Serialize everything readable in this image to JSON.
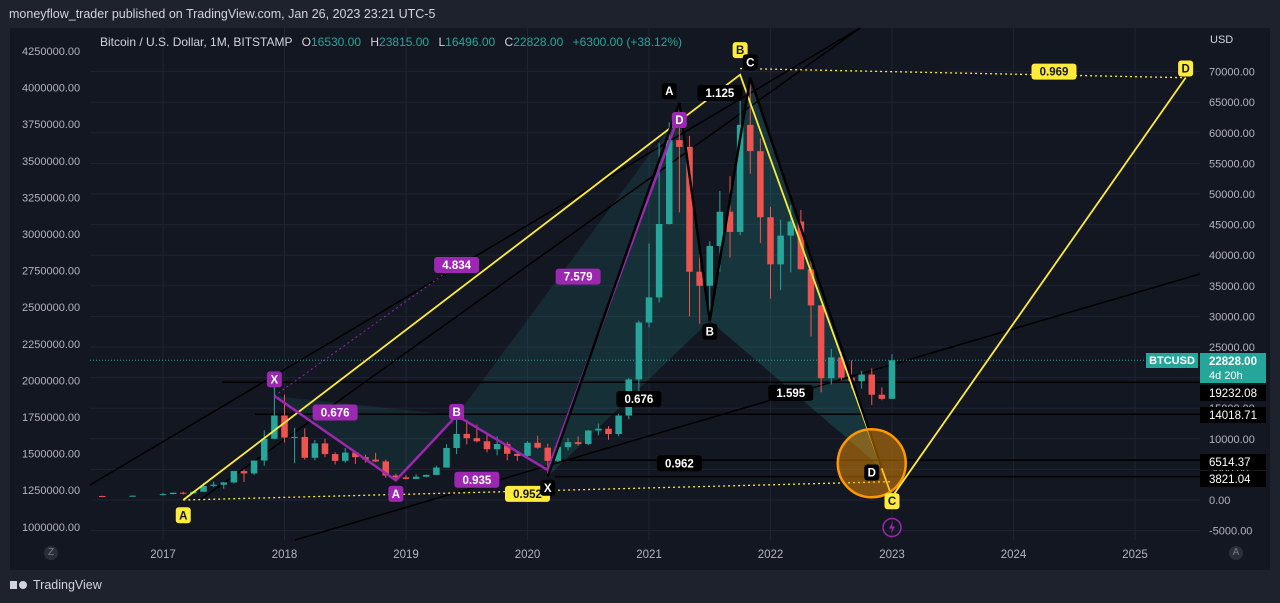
{
  "header": {
    "publish_line": "moneyflow_trader published on TradingView.com, Jan 26, 2023 23:21 UTC-5"
  },
  "legend": {
    "symbol": "Bitcoin / U.S. Dollar, 1M, BITSTAMP",
    "o_key": "O",
    "o_val": "16530.00",
    "h_key": "H",
    "h_val": "23815.00",
    "l_key": "L",
    "l_val": "16496.00",
    "c_key": "C",
    "c_val": "22828.00",
    "change": "+6300.00 (+38.12%)"
  },
  "right_axis": {
    "currency": "USD",
    "ticks": [
      "70000.00",
      "65000.00",
      "60000.00",
      "55000.00",
      "50000.00",
      "45000.00",
      "40000.00",
      "35000.00",
      "30000.00",
      "25000.00",
      "20000.00",
      "15000.00",
      "10000.00",
      "5000.00",
      "0.00",
      "-5000.00"
    ],
    "price_tag": {
      "symbol": "BTCUSD",
      "price": "22828.00",
      "countdown": "4d 20h",
      "color": "#26a69a"
    },
    "level_tags": [
      "19232.08",
      "14018.71",
      "6514.37",
      "3821.04"
    ]
  },
  "left_axis": {
    "ticks": [
      "4250000.00",
      "4000000.00",
      "3750000.00",
      "3500000.00",
      "3250000.00",
      "3000000.00",
      "2750000.00",
      "2500000.00",
      "2250000.00",
      "2000000.00",
      "1750000.00",
      "1500000.00",
      "1250000.00",
      "1000000.00"
    ]
  },
  "x_axis": {
    "ticks": [
      "2017",
      "2018",
      "2019",
      "2020",
      "2021",
      "2022",
      "2023",
      "2024",
      "2025"
    ]
  },
  "corners": {
    "left": "Z",
    "right": "A"
  },
  "footer": {
    "brand": "TradingView"
  },
  "chart_data": {
    "type": "candlestick",
    "symbol": "BTCUSD",
    "timeframe": "1M",
    "exchange": "BITSTAMP",
    "y_unit": "USD",
    "ylim": [
      -5000,
      72000
    ],
    "xlim": [
      "2016-06",
      "2025-08"
    ],
    "colors": {
      "up": "#26a69a",
      "down": "#ef5350",
      "pattern_yellow": "#ffeb3b",
      "pattern_purple": "#9c27b0",
      "pattern_black": "#000000",
      "highlight": "#ff9800"
    },
    "candles": [
      {
        "t": "2016-07",
        "o": 650,
        "h": 700,
        "l": 600,
        "c": 620
      },
      {
        "t": "2016-10",
        "o": 610,
        "h": 760,
        "l": 600,
        "c": 700
      },
      {
        "t": "2017-01",
        "o": 960,
        "h": 1150,
        "l": 750,
        "c": 970
      },
      {
        "t": "2017-02",
        "o": 970,
        "h": 1200,
        "l": 920,
        "c": 1190
      },
      {
        "t": "2017-03",
        "o": 1190,
        "h": 1350,
        "l": 890,
        "c": 1080
      },
      {
        "t": "2017-04",
        "o": 1080,
        "h": 1450,
        "l": 1080,
        "c": 1350
      },
      {
        "t": "2017-05",
        "o": 1350,
        "h": 2800,
        "l": 1350,
        "c": 2300
      },
      {
        "t": "2017-06",
        "o": 2300,
        "h": 3000,
        "l": 2100,
        "c": 2500
      },
      {
        "t": "2017-07",
        "o": 2500,
        "h": 2950,
        "l": 1850,
        "c": 2870
      },
      {
        "t": "2017-08",
        "o": 2870,
        "h": 4750,
        "l": 2700,
        "c": 4730
      },
      {
        "t": "2017-09",
        "o": 4730,
        "h": 5000,
        "l": 2950,
        "c": 4340
      },
      {
        "t": "2017-10",
        "o": 4340,
        "h": 6450,
        "l": 4100,
        "c": 6450
      },
      {
        "t": "2017-11",
        "o": 6450,
        "h": 11400,
        "l": 5600,
        "c": 10000
      },
      {
        "t": "2017-12",
        "o": 10000,
        "h": 19700,
        "l": 10000,
        "c": 13800
      },
      {
        "t": "2018-01",
        "o": 13800,
        "h": 17200,
        "l": 9400,
        "c": 10200
      },
      {
        "t": "2018-02",
        "o": 10200,
        "h": 11800,
        "l": 6000,
        "c": 10300
      },
      {
        "t": "2018-03",
        "o": 10300,
        "h": 11700,
        "l": 6600,
        "c": 6900
      },
      {
        "t": "2018-04",
        "o": 6900,
        "h": 9800,
        "l": 6500,
        "c": 9250
      },
      {
        "t": "2018-05",
        "o": 9250,
        "h": 10000,
        "l": 7000,
        "c": 7500
      },
      {
        "t": "2018-06",
        "o": 7500,
        "h": 7800,
        "l": 5800,
        "c": 6400
      },
      {
        "t": "2018-07",
        "o": 6400,
        "h": 8500,
        "l": 6100,
        "c": 7750
      },
      {
        "t": "2018-08",
        "o": 7750,
        "h": 7800,
        "l": 5900,
        "c": 7000
      },
      {
        "t": "2018-09",
        "o": 7000,
        "h": 7400,
        "l": 6100,
        "c": 6600
      },
      {
        "t": "2018-10",
        "o": 6600,
        "h": 7700,
        "l": 6200,
        "c": 6300
      },
      {
        "t": "2018-11",
        "o": 6300,
        "h": 6600,
        "l": 3650,
        "c": 4000
      },
      {
        "t": "2018-12",
        "o": 4000,
        "h": 4300,
        "l": 3200,
        "c": 3700
      },
      {
        "t": "2019-01",
        "o": 3700,
        "h": 4100,
        "l": 3350,
        "c": 3450
      },
      {
        "t": "2019-02",
        "o": 3450,
        "h": 4200,
        "l": 3400,
        "c": 3800
      },
      {
        "t": "2019-03",
        "o": 3800,
        "h": 4150,
        "l": 3700,
        "c": 4100
      },
      {
        "t": "2019-04",
        "o": 4100,
        "h": 5600,
        "l": 4050,
        "c": 5300
      },
      {
        "t": "2019-05",
        "o": 5300,
        "h": 9100,
        "l": 5300,
        "c": 8500
      },
      {
        "t": "2019-06",
        "o": 8500,
        "h": 13800,
        "l": 7500,
        "c": 10800
      },
      {
        "t": "2019-07",
        "o": 10800,
        "h": 13100,
        "l": 9100,
        "c": 10100
      },
      {
        "t": "2019-08",
        "o": 10100,
        "h": 12300,
        "l": 9400,
        "c": 9600
      },
      {
        "t": "2019-09",
        "o": 9600,
        "h": 10900,
        "l": 7800,
        "c": 8300
      },
      {
        "t": "2019-10",
        "o": 8300,
        "h": 10400,
        "l": 7300,
        "c": 9150
      },
      {
        "t": "2019-11",
        "o": 9150,
        "h": 9500,
        "l": 6500,
        "c": 7550
      },
      {
        "t": "2019-12",
        "o": 7550,
        "h": 7800,
        "l": 6400,
        "c": 7200
      },
      {
        "t": "2020-01",
        "o": 7200,
        "h": 9600,
        "l": 6900,
        "c": 9350
      },
      {
        "t": "2020-02",
        "o": 9350,
        "h": 10500,
        "l": 8400,
        "c": 8550
      },
      {
        "t": "2020-03",
        "o": 8550,
        "h": 9200,
        "l": 3850,
        "c": 6400
      },
      {
        "t": "2020-04",
        "o": 6400,
        "h": 9500,
        "l": 6200,
        "c": 8650
      },
      {
        "t": "2020-05",
        "o": 8650,
        "h": 10100,
        "l": 8100,
        "c": 9450
      },
      {
        "t": "2020-06",
        "o": 9450,
        "h": 10400,
        "l": 8900,
        "c": 9150
      },
      {
        "t": "2020-07",
        "o": 9150,
        "h": 11450,
        "l": 8950,
        "c": 11350
      },
      {
        "t": "2020-08",
        "o": 11350,
        "h": 12500,
        "l": 10550,
        "c": 11650
      },
      {
        "t": "2020-09",
        "o": 11650,
        "h": 12100,
        "l": 9850,
        "c": 10780
      },
      {
        "t": "2020-10",
        "o": 10780,
        "h": 14100,
        "l": 10400,
        "c": 13800
      },
      {
        "t": "2020-11",
        "o": 13800,
        "h": 19900,
        "l": 13200,
        "c": 19700
      },
      {
        "t": "2020-12",
        "o": 19700,
        "h": 29300,
        "l": 17600,
        "c": 29000
      },
      {
        "t": "2021-01",
        "o": 29000,
        "h": 41900,
        "l": 28200,
        "c": 33100
      },
      {
        "t": "2021-02",
        "o": 33100,
        "h": 58300,
        "l": 32300,
        "c": 45100
      },
      {
        "t": "2021-03",
        "o": 45100,
        "h": 61700,
        "l": 45000,
        "c": 58800
      },
      {
        "t": "2021-04",
        "o": 58800,
        "h": 64900,
        "l": 47000,
        "c": 57700
      },
      {
        "t": "2021-05",
        "o": 57700,
        "h": 59500,
        "l": 30000,
        "c": 37300
      },
      {
        "t": "2021-06",
        "o": 37300,
        "h": 41300,
        "l": 28800,
        "c": 35000
      },
      {
        "t": "2021-07",
        "o": 35000,
        "h": 42300,
        "l": 29300,
        "c": 41500
      },
      {
        "t": "2021-08",
        "o": 41500,
        "h": 50500,
        "l": 37300,
        "c": 47100
      },
      {
        "t": "2021-09",
        "o": 47100,
        "h": 52900,
        "l": 39600,
        "c": 43800
      },
      {
        "t": "2021-10",
        "o": 43800,
        "h": 67000,
        "l": 43300,
        "c": 61300
      },
      {
        "t": "2021-11",
        "o": 61300,
        "h": 69000,
        "l": 53300,
        "c": 57000
      },
      {
        "t": "2021-12",
        "o": 57000,
        "h": 59100,
        "l": 42000,
        "c": 46200
      },
      {
        "t": "2022-01",
        "o": 46200,
        "h": 47900,
        "l": 32900,
        "c": 38500
      },
      {
        "t": "2022-02",
        "o": 38500,
        "h": 45800,
        "l": 34300,
        "c": 43200
      },
      {
        "t": "2022-03",
        "o": 43200,
        "h": 48200,
        "l": 37200,
        "c": 45500
      },
      {
        "t": "2022-04",
        "o": 45500,
        "h": 47400,
        "l": 37700,
        "c": 37700
      },
      {
        "t": "2022-05",
        "o": 37700,
        "h": 39900,
        "l": 26700,
        "c": 31800
      },
      {
        "t": "2022-06",
        "o": 31800,
        "h": 31900,
        "l": 17600,
        "c": 19900
      },
      {
        "t": "2022-07",
        "o": 19900,
        "h": 24700,
        "l": 18900,
        "c": 23300
      },
      {
        "t": "2022-08",
        "o": 23300,
        "h": 25200,
        "l": 19600,
        "c": 20000
      },
      {
        "t": "2022-09",
        "o": 20000,
        "h": 22800,
        "l": 18200,
        "c": 19400
      },
      {
        "t": "2022-10",
        "o": 19400,
        "h": 21100,
        "l": 18200,
        "c": 20500
      },
      {
        "t": "2022-11",
        "o": 20500,
        "h": 21500,
        "l": 15500,
        "c": 17200
      },
      {
        "t": "2022-12",
        "o": 17200,
        "h": 18400,
        "l": 16300,
        "c": 16530
      },
      {
        "t": "2023-01",
        "o": 16530,
        "h": 23815,
        "l": 16496,
        "c": 22828
      }
    ],
    "horizontal_levels": [
      19232.08,
      14018.71,
      6514.37,
      3821.04
    ],
    "pattern_labels": [
      {
        "text": "A",
        "style": "yellow",
        "t": "2017-03",
        "y": -2500
      },
      {
        "text": "B",
        "style": "yellow",
        "t": "2021-10",
        "y": 73500
      },
      {
        "text": "C",
        "style": "yellow",
        "t": "2023-01",
        "y": -200
      },
      {
        "text": "D",
        "style": "yellow",
        "t": "2025-06",
        "y": 70500
      },
      {
        "text": "0.969",
        "style": "yellow",
        "t": "2024-05",
        "y": 70000
      },
      {
        "text": "0.952",
        "style": "yellow",
        "t": "2020-01",
        "y": 1000
      },
      {
        "text": "X",
        "style": "purple",
        "t": "2017-12",
        "y": 19700
      },
      {
        "text": "A",
        "style": "purple",
        "t": "2018-12",
        "y": 1000
      },
      {
        "text": "B",
        "style": "purple",
        "t": "2019-06",
        "y": 14400
      },
      {
        "text": "D",
        "style": "purple",
        "t": "2021-04",
        "y": 62100
      },
      {
        "text": "0.676",
        "style": "purple",
        "t": "2018-06",
        "y": 14300
      },
      {
        "text": "0.935",
        "style": "purple",
        "t": "2019-08",
        "y": 3300
      },
      {
        "text": "4.834",
        "style": "purple",
        "t": "2019-06",
        "y": 38400
      },
      {
        "text": "7.579",
        "style": "purple",
        "t": "2020-06",
        "y": 36500
      },
      {
        "text": "X",
        "style": "black",
        "t": "2020-03",
        "y": 2000
      },
      {
        "text": "A",
        "style": "black",
        "t": "2021-03",
        "y": 66800
      },
      {
        "text": "B",
        "style": "black",
        "t": "2021-07",
        "y": 27500
      },
      {
        "text": "C",
        "style": "black",
        "t": "2021-11",
        "y": 71500
      },
      {
        "text": "D",
        "style": "black",
        "t": "2022-11",
        "y": 4500
      },
      {
        "text": "1.125",
        "style": "black",
        "t": "2021-08",
        "y": 66500
      },
      {
        "text": "0.676",
        "style": "black",
        "t": "2020-12",
        "y": 16500
      },
      {
        "text": "1.595",
        "style": "black",
        "t": "2022-03",
        "y": 17500
      },
      {
        "text": "0.962",
        "style": "black",
        "t": "2021-04",
        "y": 6000
      }
    ]
  }
}
